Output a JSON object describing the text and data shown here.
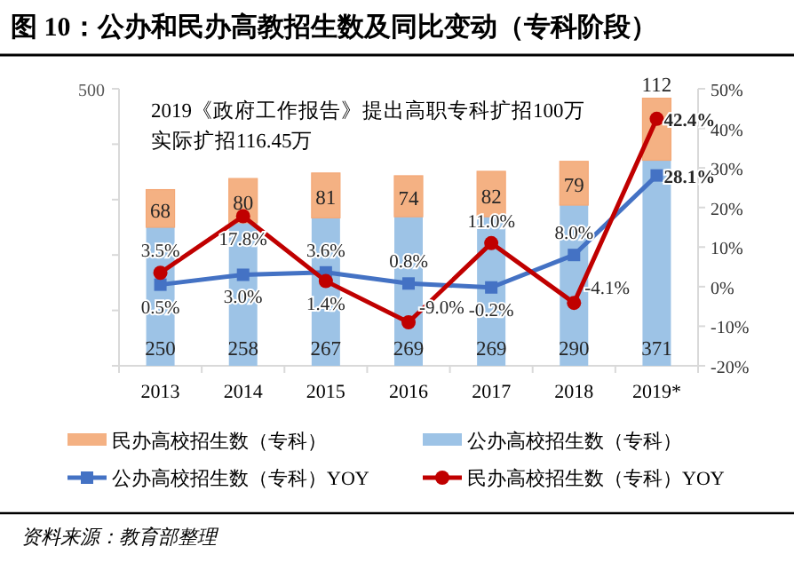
{
  "chart_data": {
    "type": "bar",
    "stacked": true,
    "title": "图 10：公办和民办高教招生数及同比变动（专科阶段）",
    "categories": [
      "2013",
      "2014",
      "2015",
      "2016",
      "2017",
      "2018",
      "2019*"
    ],
    "series": [
      {
        "name": "公办高校招生数（专科）",
        "color": "#9dc3e6",
        "values": [
          250,
          258,
          267,
          269,
          269,
          290,
          371
        ],
        "value_labels": [
          "250",
          "258",
          "267",
          "269",
          "269",
          "290",
          "371"
        ]
      },
      {
        "name": "民办高校招生数（专科）",
        "color": "#f4b183",
        "values": [
          68,
          80,
          81,
          74,
          82,
          79,
          112
        ],
        "value_labels": [
          "68",
          "80",
          "81",
          "74",
          "82",
          "79",
          "112"
        ]
      },
      {
        "name": "公办高校招生数（专科）YOY",
        "type": "line",
        "axis": "y2",
        "marker": "square",
        "color": "#4472c4",
        "values": [
          0.5,
          3.0,
          3.6,
          0.8,
          -0.2,
          8.0,
          28.1
        ],
        "value_labels": [
          "0.5%",
          "3.0%",
          "3.6%",
          "0.8%",
          "-0.2%",
          "8.0%",
          "28.1%"
        ]
      },
      {
        "name": "民办高校招生数（专科）YOY",
        "type": "line",
        "axis": "y2",
        "marker": "circle",
        "color": "#c00000",
        "values": [
          3.5,
          17.8,
          1.4,
          -9.0,
          11.0,
          -4.1,
          42.4
        ],
        "value_labels": [
          "3.5%",
          "17.8%",
          "1.4%",
          "-9.0%",
          "11.0%",
          "-4.1%",
          "42.4%"
        ]
      }
    ],
    "ylim": [
      0,
      500
    ],
    "yticks": [
      {
        "value": 0,
        "label": null
      },
      {
        "value": 100,
        "label": null
      },
      {
        "value": 200,
        "label": null
      },
      {
        "value": 300,
        "label": null
      },
      {
        "value": 400,
        "label": null
      },
      500
    ],
    "y2lim": [
      -20,
      50
    ],
    "y2ticks": [
      {
        "value": -20,
        "label": "-20%"
      },
      {
        "value": -10,
        "label": "-10%"
      },
      {
        "value": 0,
        "label": "0%"
      },
      {
        "value": 10,
        "label": "10%"
      },
      {
        "value": 20,
        "label": "20%"
      },
      {
        "value": 30,
        "label": "30%"
      },
      {
        "value": 40,
        "label": "40%"
      },
      {
        "value": 50,
        "label": "50%"
      }
    ],
    "annotations": [
      "2019《政府工作报告》提出高职专科扩招100万",
      "实际扩招116.45万",
      "资料来源：教育部整理"
    ],
    "legend": "bottom",
    "grid": false,
    "line_style": "solid"
  }
}
